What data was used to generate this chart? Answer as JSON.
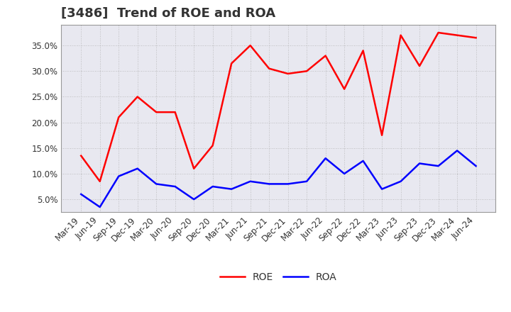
{
  "title": "[3486]  Trend of ROE and ROA",
  "labels": [
    "Mar-19",
    "Jun-19",
    "Sep-19",
    "Dec-19",
    "Mar-20",
    "Jun-20",
    "Sep-20",
    "Dec-20",
    "Mar-21",
    "Jun-21",
    "Sep-21",
    "Dec-21",
    "Mar-22",
    "Jun-22",
    "Sep-22",
    "Dec-22",
    "Mar-23",
    "Jun-23",
    "Sep-23",
    "Dec-23",
    "Mar-24",
    "Jun-24"
  ],
  "roe": [
    13.5,
    8.5,
    21.0,
    25.0,
    22.0,
    22.0,
    11.0,
    15.5,
    31.5,
    35.0,
    30.5,
    29.5,
    30.0,
    33.0,
    26.5,
    34.0,
    17.5,
    37.0,
    31.0,
    37.5,
    37.0,
    36.5
  ],
  "roa": [
    6.0,
    3.5,
    9.5,
    11.0,
    8.0,
    7.5,
    5.0,
    7.5,
    7.0,
    8.5,
    8.0,
    8.0,
    8.5,
    13.0,
    10.0,
    12.5,
    7.0,
    8.5,
    12.0,
    11.5,
    14.5,
    11.5
  ],
  "roe_color": "#ff0000",
  "roa_color": "#0000ff",
  "ylim": [
    2.5,
    39.0
  ],
  "yticks": [
    5.0,
    10.0,
    15.0,
    20.0,
    25.0,
    30.0,
    35.0
  ],
  "grid_color": "#aaaaaa",
  "background_color": "#ffffff",
  "plot_bg_color": "#e8e8f0",
  "legend_roe": "ROE",
  "legend_roa": "ROA",
  "title_fontsize": 13,
  "axis_fontsize": 8.5,
  "legend_fontsize": 10,
  "line_width": 1.8,
  "title_color": "#333333"
}
